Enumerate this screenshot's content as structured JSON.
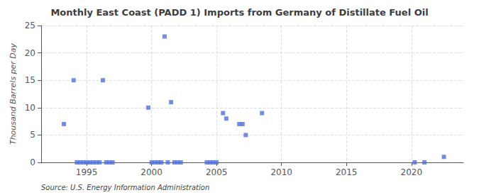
{
  "chart_data": {
    "type": "scatter",
    "title": "Monthly East Coast (PADD 1) Imports from Germany of Distillate Fuel Oil",
    "ylabel": "Thousand Barrels per Day",
    "annotation": "Source: U.S. Energy Information Administration",
    "marker": "square",
    "grid": true,
    "xlim": [
      1991.5,
      2024.0
    ],
    "ylim": [
      0,
      25
    ],
    "xticks": [
      1995,
      2000,
      2005,
      2010,
      2015,
      2020
    ],
    "yticks": [
      0,
      5,
      10,
      15,
      20,
      25
    ],
    "x": [
      1993.25,
      1994.0,
      1996.25,
      1994.25,
      1994.5,
      1994.75,
      1995.0,
      1995.25,
      1995.5,
      1995.75,
      1996.0,
      1996.5,
      1996.75,
      1997.0,
      1999.75,
      2001.0,
      2001.5,
      2000.0,
      2000.25,
      2000.5,
      2000.75,
      2001.25,
      2001.75,
      2002.0,
      2002.25,
      2004.25,
      2004.5,
      2004.75,
      2005.0,
      2005.5,
      2005.75,
      2006.75,
      2007.0,
      2007.25,
      2008.5,
      2020.25,
      2021.0,
      2022.5
    ],
    "values": [
      7,
      15,
      15,
      0,
      0,
      0,
      0,
      0,
      0,
      0,
      0,
      0,
      0,
      0,
      10,
      23,
      11,
      0,
      0,
      0,
      0,
      0,
      0,
      0,
      0,
      0,
      0,
      0,
      0,
      9,
      8,
      7,
      7,
      5,
      9,
      0,
      0,
      1
    ]
  }
}
